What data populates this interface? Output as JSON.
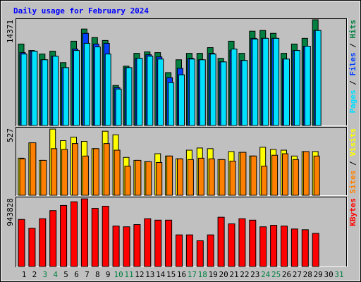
{
  "chart_data": {
    "type": "bar",
    "title": "Daily usage for February 2024",
    "title_color": "#0000ff",
    "categories": [
      "1",
      "2",
      "3",
      "4",
      "5",
      "6",
      "7",
      "8",
      "9",
      "10",
      "11",
      "12",
      "13",
      "14",
      "15",
      "16",
      "17",
      "18",
      "19",
      "20",
      "21",
      "22",
      "23",
      "24",
      "25",
      "26",
      "27",
      "28",
      "29",
      "30",
      "31"
    ],
    "category_colors": [
      "#000000",
      "#000000",
      "#008040",
      "#008040",
      "#000000",
      "#000000",
      "#000000",
      "#000000",
      "#000000",
      "#008040",
      "#008040",
      "#000000",
      "#000000",
      "#000000",
      "#000000",
      "#000000",
      "#008040",
      "#008040",
      "#000000",
      "#000000",
      "#000000",
      "#000000",
      "#000000",
      "#008040",
      "#008040",
      "#000000",
      "#000000",
      "#000000",
      "#000000",
      "#000000",
      "#008040"
    ],
    "separator": " / ",
    "panels": [
      {
        "ylim": [
          0,
          14371
        ],
        "yticks": [
          14371
        ],
        "series": [
          {
            "name": "Pages",
            "color": "#00e0ff",
            "values": [
              9710,
              10099,
              8933,
              9419,
              7865,
              10196,
              11167,
              10681,
              9710,
              4952,
              7865,
              9128,
              9419,
              9030,
              5826,
              6894,
              9030,
              8933,
              9710,
              8642,
              10390,
              8836,
              11749,
              11846,
              11846,
              9030,
              10196,
              10778,
              12915,
              null,
              null
            ]
          },
          {
            "name": "Files",
            "color": "#0040ff",
            "values": [
              9904,
              10099,
              8933,
              9419,
              7865,
              10390,
              12526,
              11070,
              11167,
              5146,
              7865,
              9128,
              9613,
              9322,
              6506,
              7768,
              9128,
              8933,
              9807,
              8642,
              10196,
              8836,
              11846,
              11846,
              11846,
              9030,
              10196,
              10778,
              12915,
              null,
              null
            ]
          },
          {
            "name": "Hits",
            "color": "#008040",
            "values": [
              11070,
              10196,
              9710,
              10099,
              8545,
              11458,
              13109,
              11944,
              11555,
              5438,
              8060,
              9807,
              10002,
              9904,
              7186,
              8933,
              9807,
              9807,
              10584,
              9128,
              11458,
              9807,
              12818,
              12915,
              12526,
              9807,
              11070,
              11846,
              14371,
              null,
              null
            ]
          }
        ]
      },
      {
        "ylim": [
          0,
          527
        ],
        "yticks": [
          527
        ],
        "series": [
          {
            "name": "Sites",
            "color": "#ff8000",
            "values": [
              287,
              413,
              275,
              367,
              361,
              407,
              309,
              367,
              407,
              355,
              229,
              275,
              264,
              258,
              309,
              287,
              281,
              292,
              287,
              281,
              269,
              338,
              309,
              229,
              315,
              327,
              281,
              344,
              309,
              null,
              null
            ]
          },
          {
            "name": "Visits",
            "color": "#ffff00",
            "values": [
              292,
              413,
              275,
              521,
              430,
              458,
              424,
              367,
              504,
              476,
              298,
              275,
              264,
              327,
              309,
              287,
              355,
              372,
              367,
              281,
              344,
              338,
              309,
              378,
              361,
              355,
              309,
              344,
              344,
              null,
              null
            ]
          }
        ]
      },
      {
        "ylim": [
          0,
          943828
        ],
        "yticks": [
          943828
        ],
        "series": [
          {
            "name": "KBytes",
            "color": "#ff0000",
            "values": [
              649536,
              527748,
              659685,
              771324,
              842367,
              893112,
              933708,
              801771,
              832218,
              558195,
              548046,
              578493,
              659685,
              639387,
              639387,
              436407,
              436407,
              355215,
              436407,
              679983,
              588642,
              659685,
              639387,
              548046,
              568344,
              558195,
              517599,
              507450,
              456705,
              null,
              null
            ]
          }
        ]
      }
    ]
  }
}
